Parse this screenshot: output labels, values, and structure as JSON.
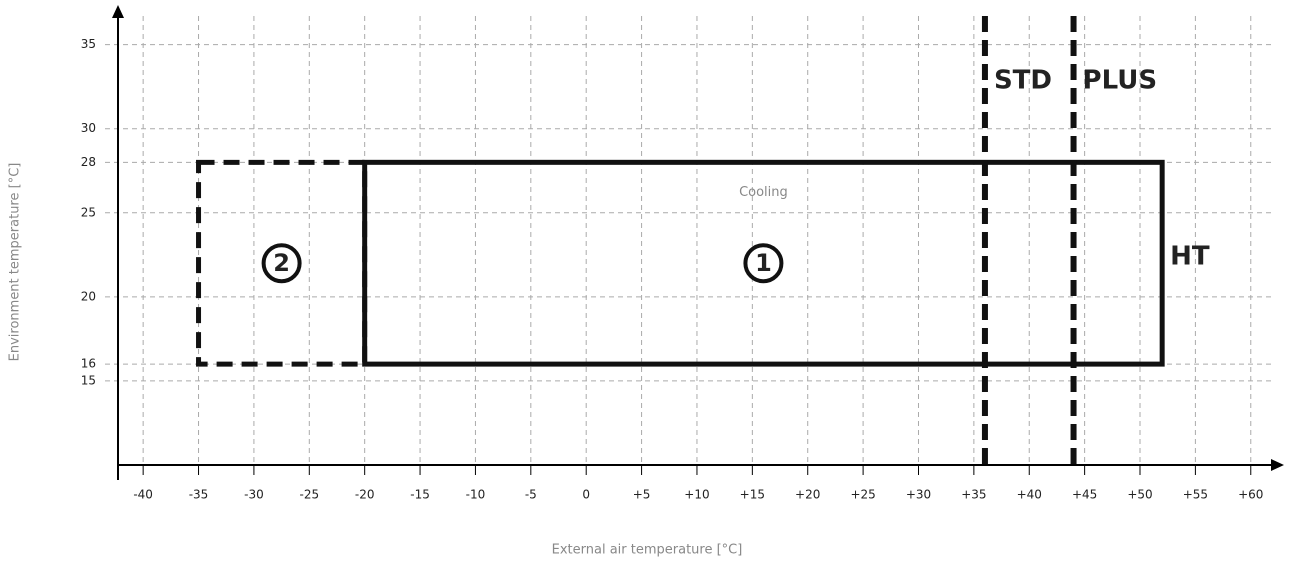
{
  "chart_data": {
    "type": "envelope",
    "x_label": "External air temperature [°C]",
    "y_label": "Environment temperature [°C]",
    "xlim": [
      -42,
      63
    ],
    "xticks": [
      -40,
      -35,
      -30,
      -25,
      -20,
      -15,
      -10,
      -5,
      0,
      {
        "value": 5,
        "label": "+5"
      },
      {
        "value": 10,
        "label": "+10"
      },
      {
        "value": 15,
        "label": "+15"
      },
      {
        "value": 20,
        "label": "+20"
      },
      {
        "value": 25,
        "label": "+25"
      },
      {
        "value": 30,
        "label": "+30"
      },
      {
        "value": 35,
        "label": "+35"
      },
      {
        "value": 40,
        "label": "+40"
      },
      {
        "value": 45,
        "label": "+45"
      },
      {
        "value": 50,
        "label": "+50"
      },
      {
        "value": 55,
        "label": "+55"
      },
      {
        "value": 60,
        "label": "+60"
      }
    ],
    "ylim": [
      10,
      37
    ],
    "yticks": [
      15,
      16,
      20,
      25,
      28,
      30,
      35
    ],
    "grid": true,
    "regions": [
      {
        "name": "1",
        "x": [
          -20,
          52
        ],
        "y": [
          16,
          28
        ],
        "style": "solid",
        "label": "Cooling",
        "edge_label": "HT"
      },
      {
        "name": "2",
        "x": [
          -35,
          -20
        ],
        "y": [
          16,
          28
        ],
        "style": "dashed"
      }
    ],
    "limits": [
      {
        "name": "STD",
        "x": 36
      },
      {
        "name": "PLUS",
        "x": 44
      }
    ]
  }
}
